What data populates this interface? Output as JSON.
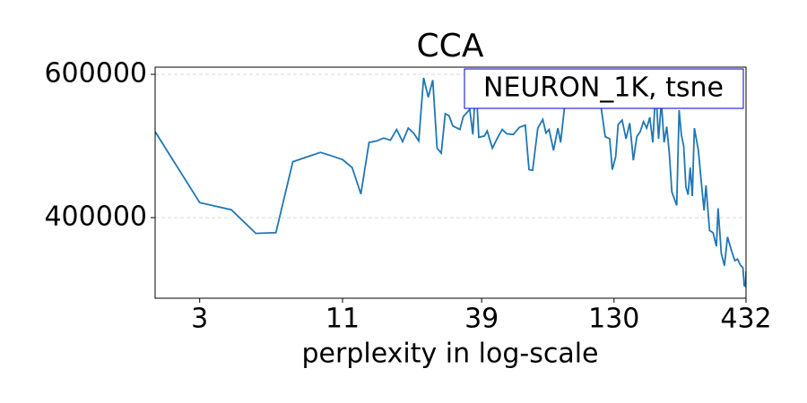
{
  "chart_data": {
    "type": "line",
    "title": "CCA",
    "xlabel": "perplexity in log-scale",
    "xscale": "log",
    "xlim": [
      2,
      432
    ],
    "ylim": [
      287500,
      610000
    ],
    "xticks": [
      3,
      11,
      39,
      130,
      432
    ],
    "yticks": [
      400000,
      600000
    ],
    "grid": true,
    "legend": "upper right",
    "series": [
      {
        "name": "NEURON_1K, tsne",
        "color": "#1f77b4",
        "x": [
          2,
          3,
          4,
          5,
          6,
          7,
          8,
          9,
          10,
          11,
          12,
          13,
          14,
          15,
          16,
          17,
          18,
          19,
          20,
          21,
          22,
          23,
          24,
          25,
          26,
          27,
          28,
          29,
          30,
          32,
          33,
          35,
          36,
          37,
          38,
          40,
          41,
          43,
          45,
          47,
          49,
          52,
          55,
          58,
          60,
          62,
          65,
          68,
          70,
          72,
          75,
          78,
          80,
          85,
          90,
          100,
          110,
          115,
          120,
          125,
          128,
          132,
          135,
          140,
          145,
          150,
          155,
          160,
          165,
          170,
          175,
          180,
          185,
          190,
          195,
          200,
          205,
          210,
          215,
          220,
          230,
          235,
          240,
          245,
          250,
          255,
          260,
          265,
          270,
          280,
          290,
          295,
          300,
          310,
          320,
          330,
          335,
          345,
          355,
          365,
          380,
          390,
          400,
          410,
          420,
          425,
          430,
          432
        ],
        "values": [
          520000,
          421000,
          411000,
          378000,
          379000,
          478000,
          485000,
          491000,
          486000,
          481000,
          470000,
          433000,
          505000,
          507000,
          511000,
          508000,
          523000,
          506000,
          525000,
          518000,
          507000,
          595000,
          568000,
          592000,
          497000,
          490000,
          545000,
          542000,
          528000,
          523000,
          541000,
          551000,
          516000,
          591000,
          512000,
          514000,
          521000,
          497000,
          511000,
          523000,
          517000,
          516000,
          526000,
          529000,
          467000,
          466000,
          525000,
          537000,
          518000,
          523000,
          494000,
          525000,
          505000,
          590000,
          605000,
          600000,
          600000,
          560000,
          513000,
          510000,
          467000,
          485000,
          530000,
          536000,
          510000,
          532000,
          480000,
          513000,
          520000,
          534000,
          525000,
          540000,
          505000,
          580000,
          510000,
          562000,
          505000,
          527000,
          490000,
          436000,
          417000,
          550000,
          515000,
          500000,
          443000,
          432000,
          470000,
          430000,
          525000,
          494000,
          436000,
          410000,
          445000,
          382000,
          379000,
          360000,
          413000,
          350000,
          333000,
          373000,
          352000,
          340000,
          342000,
          334000,
          330000,
          305000,
          304000,
          325000
        ]
      }
    ]
  }
}
